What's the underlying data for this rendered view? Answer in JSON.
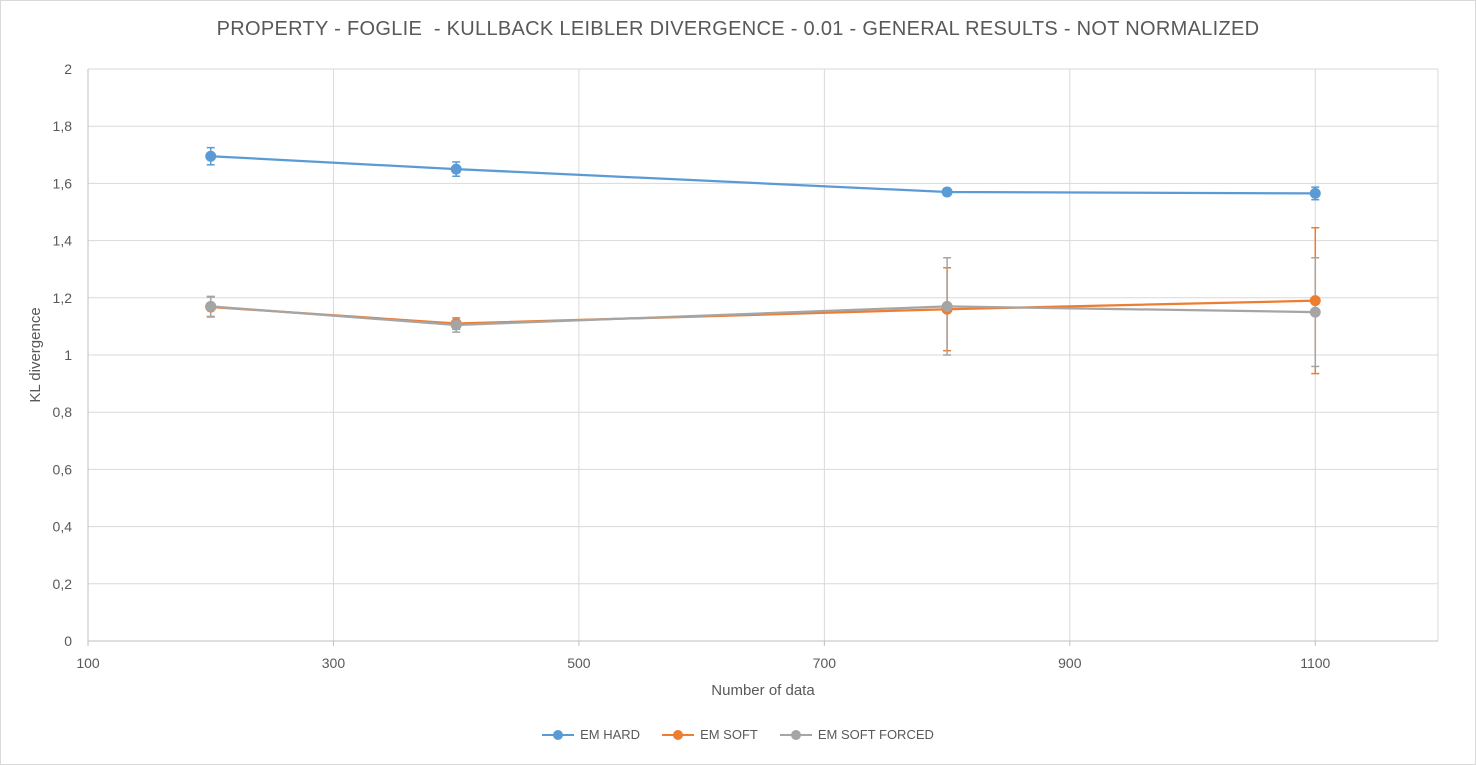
{
  "chart_data": {
    "type": "line",
    "title": "PROPERTY - FOGLIE  - KULLBACK LEIBLER DIVERGENCE - 0.01 - GENERAL RESULTS - NOT NORMALIZED",
    "xlabel": "Number of data",
    "ylabel": "KL divergence",
    "xlim": [
      100,
      1200
    ],
    "ylim": [
      0,
      2
    ],
    "x_ticks": [
      100,
      300,
      500,
      700,
      900,
      1100
    ],
    "x_tick_labels": [
      "100",
      "300",
      "500",
      "700",
      "900",
      "1100"
    ],
    "y_ticks": [
      0,
      0.2,
      0.4,
      0.6,
      0.8,
      1,
      1.2,
      1.4,
      1.6,
      1.8,
      2
    ],
    "y_tick_labels": [
      "0",
      "0,2",
      "0,4",
      "0,6",
      "0,8",
      "1",
      "1,2",
      "1,4",
      "1,6",
      "1,8",
      "2"
    ],
    "grid": true,
    "legend_position": "bottom",
    "series": [
      {
        "name": "EM HARD",
        "color": "#5b9bd5",
        "x": [
          200,
          400,
          800,
          1100
        ],
        "y": [
          1.695,
          1.65,
          1.57,
          1.565
        ],
        "error": [
          0.03,
          0.025,
          0.012,
          0.022
        ]
      },
      {
        "name": "EM SOFT",
        "color": "#ed7d31",
        "x": [
          200,
          400,
          800,
          1100
        ],
        "y": [
          1.168,
          1.11,
          1.16,
          1.19
        ],
        "error": [
          0.035,
          0.02,
          0.145,
          0.255
        ]
      },
      {
        "name": "EM SOFT FORCED",
        "color": "#a5a5a5",
        "x": [
          200,
          400,
          800,
          1100
        ],
        "y": [
          1.17,
          1.105,
          1.17,
          1.15
        ],
        "error": [
          0.035,
          0.025,
          0.17,
          0.19
        ]
      }
    ]
  }
}
